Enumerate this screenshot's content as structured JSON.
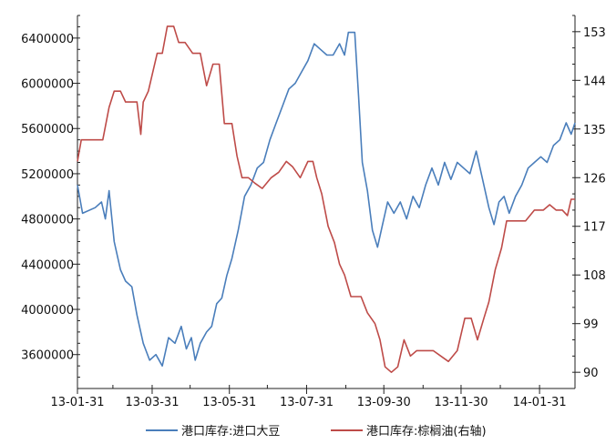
{
  "chart_data": {
    "type": "line",
    "x_ticks": [
      "13-01-31",
      "13-03-31",
      "13-05-31",
      "13-07-31",
      "13-09-30",
      "13-11-30",
      "14-01-31"
    ],
    "xlim": [
      "2013-01-31",
      "2014-02-28"
    ],
    "y_left": {
      "ticks": [
        3600000,
        4000000,
        4400000,
        4800000,
        5200000,
        5600000,
        6000000,
        6400000
      ],
      "range": [
        3300000,
        6600000
      ]
    },
    "y_right": {
      "ticks": [
        90,
        99,
        108,
        117,
        126,
        135,
        144,
        153
      ],
      "range": [
        87,
        156
      ]
    },
    "legend_position": "bottom",
    "grid": false,
    "series": [
      {
        "name": "港口库存:进口大豆",
        "axis": "left",
        "color": "#4a7ebb",
        "points": [
          [
            "2013-01-31",
            5100000
          ],
          [
            "2013-02-04",
            4850000
          ],
          [
            "2013-02-14",
            4900000
          ],
          [
            "2013-02-19",
            4950000
          ],
          [
            "2013-02-22",
            4800000
          ],
          [
            "2013-02-25",
            5050000
          ],
          [
            "2013-03-01",
            4600000
          ],
          [
            "2013-03-06",
            4350000
          ],
          [
            "2013-03-10",
            4250000
          ],
          [
            "2013-03-15",
            4200000
          ],
          [
            "2013-03-19",
            3950000
          ],
          [
            "2013-03-24",
            3700000
          ],
          [
            "2013-03-29",
            3550000
          ],
          [
            "2013-04-03",
            3600000
          ],
          [
            "2013-04-08",
            3500000
          ],
          [
            "2013-04-13",
            3750000
          ],
          [
            "2013-04-18",
            3700000
          ],
          [
            "2013-04-23",
            3850000
          ],
          [
            "2013-04-27",
            3650000
          ],
          [
            "2013-05-01",
            3750000
          ],
          [
            "2013-05-04",
            3550000
          ],
          [
            "2013-05-08",
            3700000
          ],
          [
            "2013-05-13",
            3800000
          ],
          [
            "2013-05-17",
            3850000
          ],
          [
            "2013-05-21",
            4050000
          ],
          [
            "2013-05-25",
            4100000
          ],
          [
            "2013-05-29",
            4300000
          ],
          [
            "2013-06-02",
            4450000
          ],
          [
            "2013-06-07",
            4700000
          ],
          [
            "2013-06-12",
            5000000
          ],
          [
            "2013-06-17",
            5100000
          ],
          [
            "2013-06-22",
            5250000
          ],
          [
            "2013-06-27",
            5300000
          ],
          [
            "2013-07-02",
            5500000
          ],
          [
            "2013-07-07",
            5650000
          ],
          [
            "2013-07-12",
            5800000
          ],
          [
            "2013-07-17",
            5950000
          ],
          [
            "2013-07-22",
            6000000
          ],
          [
            "2013-07-27",
            6100000
          ],
          [
            "2013-08-01",
            6200000
          ],
          [
            "2013-08-06",
            6350000
          ],
          [
            "2013-08-11",
            6300000
          ],
          [
            "2013-08-16",
            6250000
          ],
          [
            "2013-08-21",
            6250000
          ],
          [
            "2013-08-26",
            6350000
          ],
          [
            "2013-08-30",
            6250000
          ],
          [
            "2013-09-02",
            6450000
          ],
          [
            "2013-09-07",
            6450000
          ],
          [
            "2013-09-10",
            5900000
          ],
          [
            "2013-09-13",
            5300000
          ],
          [
            "2013-09-17",
            5050000
          ],
          [
            "2013-09-21",
            4700000
          ],
          [
            "2013-09-25",
            4550000
          ],
          [
            "2013-09-29",
            4750000
          ],
          [
            "2013-10-03",
            4950000
          ],
          [
            "2013-10-08",
            4850000
          ],
          [
            "2013-10-13",
            4950000
          ],
          [
            "2013-10-18",
            4800000
          ],
          [
            "2013-10-23",
            5000000
          ],
          [
            "2013-10-28",
            4900000
          ],
          [
            "2013-11-02",
            5100000
          ],
          [
            "2013-11-07",
            5250000
          ],
          [
            "2013-11-12",
            5100000
          ],
          [
            "2013-11-17",
            5300000
          ],
          [
            "2013-11-22",
            5150000
          ],
          [
            "2013-11-27",
            5300000
          ],
          [
            "2013-12-02",
            5250000
          ],
          [
            "2013-12-07",
            5200000
          ],
          [
            "2013-12-12",
            5400000
          ],
          [
            "2013-12-17",
            5150000
          ],
          [
            "2013-12-22",
            4900000
          ],
          [
            "2013-12-26",
            4750000
          ],
          [
            "2013-12-30",
            4950000
          ],
          [
            "2014-01-03",
            5000000
          ],
          [
            "2014-01-07",
            4850000
          ],
          [
            "2014-01-12",
            5000000
          ],
          [
            "2014-01-17",
            5100000
          ],
          [
            "2014-01-22",
            5250000
          ],
          [
            "2014-01-27",
            5300000
          ],
          [
            "2014-02-01",
            5350000
          ],
          [
            "2014-02-06",
            5300000
          ],
          [
            "2014-02-11",
            5450000
          ],
          [
            "2014-02-16",
            5500000
          ],
          [
            "2014-02-21",
            5650000
          ],
          [
            "2014-02-25",
            5550000
          ],
          [
            "2014-02-28",
            5650000
          ]
        ]
      },
      {
        "name": "港口库存:棕榈油(右轴)",
        "axis": "right",
        "color": "#be4b48",
        "points": [
          [
            "2013-01-31",
            129
          ],
          [
            "2013-02-03",
            133
          ],
          [
            "2013-02-20",
            133
          ],
          [
            "2013-02-25",
            139
          ],
          [
            "2013-03-01",
            142
          ],
          [
            "2013-03-06",
            142
          ],
          [
            "2013-03-10",
            140
          ],
          [
            "2013-03-14",
            140
          ],
          [
            "2013-03-19",
            140
          ],
          [
            "2013-03-22",
            134
          ],
          [
            "2013-03-24",
            140
          ],
          [
            "2013-03-28",
            142
          ],
          [
            "2013-04-04",
            149
          ],
          [
            "2013-04-08",
            149
          ],
          [
            "2013-04-12",
            154
          ],
          [
            "2013-04-17",
            154
          ],
          [
            "2013-04-21",
            151
          ],
          [
            "2013-04-26",
            151
          ],
          [
            "2013-05-02",
            149
          ],
          [
            "2013-05-08",
            149
          ],
          [
            "2013-05-13",
            143
          ],
          [
            "2013-05-18",
            147
          ],
          [
            "2013-05-23",
            147
          ],
          [
            "2013-05-27",
            136
          ],
          [
            "2013-06-02",
            136
          ],
          [
            "2013-06-06",
            130
          ],
          [
            "2013-06-10",
            126
          ],
          [
            "2013-06-15",
            126
          ],
          [
            "2013-06-20",
            125
          ],
          [
            "2013-06-26",
            124
          ],
          [
            "2013-07-03",
            126
          ],
          [
            "2013-07-09",
            127
          ],
          [
            "2013-07-15",
            129
          ],
          [
            "2013-07-20",
            128
          ],
          [
            "2013-07-26",
            126
          ],
          [
            "2013-08-01",
            129
          ],
          [
            "2013-08-05",
            129
          ],
          [
            "2013-08-08",
            126
          ],
          [
            "2013-08-12",
            123
          ],
          [
            "2013-08-17",
            117
          ],
          [
            "2013-08-22",
            114
          ],
          [
            "2013-08-26",
            110
          ],
          [
            "2013-08-30",
            108
          ],
          [
            "2013-09-04",
            104
          ],
          [
            "2013-09-12",
            104
          ],
          [
            "2013-09-17",
            101
          ],
          [
            "2013-09-23",
            99
          ],
          [
            "2013-09-27",
            96
          ],
          [
            "2013-10-01",
            91
          ],
          [
            "2013-10-06",
            90
          ],
          [
            "2013-10-11",
            91
          ],
          [
            "2013-10-16",
            96
          ],
          [
            "2013-10-21",
            93
          ],
          [
            "2013-10-26",
            94
          ],
          [
            "2013-11-02",
            94
          ],
          [
            "2013-11-08",
            94
          ],
          [
            "2013-11-14",
            93
          ],
          [
            "2013-11-20",
            92
          ],
          [
            "2013-11-27",
            94
          ],
          [
            "2013-12-03",
            100
          ],
          [
            "2013-12-08",
            100
          ],
          [
            "2013-12-13",
            96
          ],
          [
            "2013-12-18",
            100
          ],
          [
            "2013-12-22",
            103
          ],
          [
            "2013-12-27",
            109
          ],
          [
            "2014-01-01",
            113
          ],
          [
            "2014-01-05",
            118
          ],
          [
            "2014-01-12",
            118
          ],
          [
            "2014-01-20",
            118
          ],
          [
            "2014-01-27",
            120
          ],
          [
            "2014-02-03",
            120
          ],
          [
            "2014-02-08",
            121
          ],
          [
            "2014-02-13",
            120
          ],
          [
            "2014-02-18",
            120
          ],
          [
            "2014-02-22",
            119
          ],
          [
            "2014-02-25",
            122
          ],
          [
            "2014-02-28",
            122
          ]
        ]
      }
    ]
  }
}
